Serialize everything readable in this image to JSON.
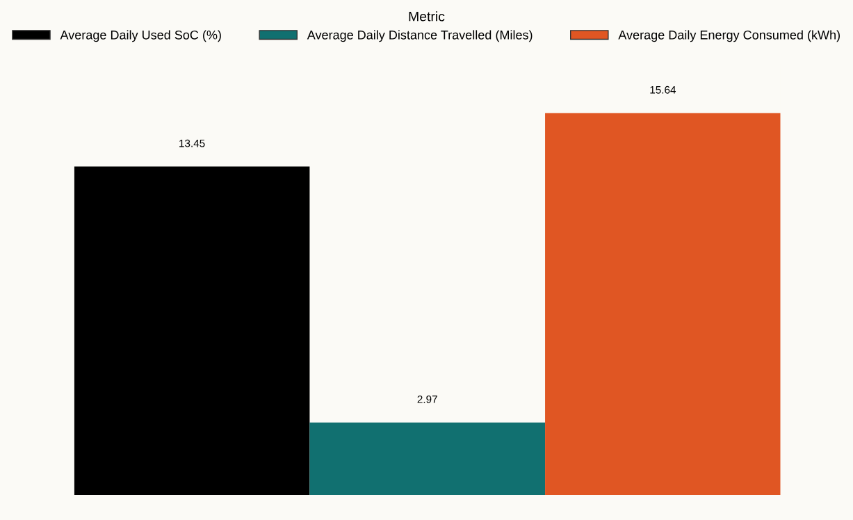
{
  "chart_data": {
    "type": "bar",
    "categories": [
      null
    ],
    "legend_title": "Metric",
    "legend": "top",
    "data_labels": true,
    "grid": false,
    "series": [
      {
        "name": "Average Daily Used SoC (%)",
        "color": "#000000",
        "values": [
          13.45
        ]
      },
      {
        "name": "Average Daily Distance Travelled (Miles)",
        "color": "#117070",
        "values": [
          2.97
        ]
      },
      {
        "name": "Average Daily Energy Consumed (kWh)",
        "color": "#e05623",
        "values": [
          15.64
        ]
      }
    ]
  }
}
